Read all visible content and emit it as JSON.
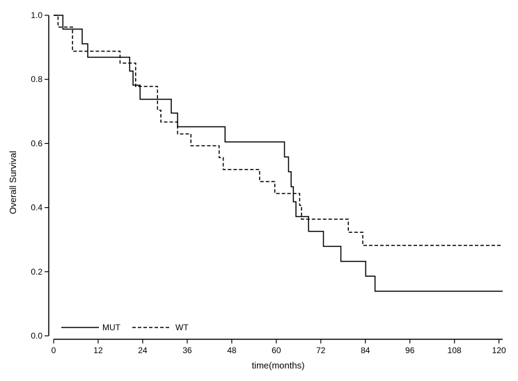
{
  "chart_data": {
    "type": "line",
    "xlabel": "time(months)",
    "ylabel": "Overall Survival",
    "xlim": [
      0,
      121
    ],
    "ylim": [
      0.0,
      1.0
    ],
    "xticks": [
      0,
      12,
      24,
      36,
      48,
      60,
      72,
      84,
      96,
      108,
      120
    ],
    "xtick_labels": [
      "0",
      "12",
      "24",
      "36",
      "48",
      "60",
      "72",
      "84",
      "96",
      "108",
      "120"
    ],
    "yticks": [
      0.0,
      0.2,
      0.4,
      0.6,
      0.8,
      1.0
    ],
    "ytick_labels": [
      "0.0",
      "0.2",
      "0.4",
      "0.6",
      "0.8",
      "1.0"
    ],
    "grid": false,
    "legend_placement": "bottom-left",
    "series": [
      {
        "name": "MUT",
        "style": "solid",
        "color": "#000000",
        "points": [
          [
            0,
            1.0
          ],
          [
            2.5,
            0.957
          ],
          [
            7.7,
            0.911
          ],
          [
            9.2,
            0.869
          ],
          [
            20.5,
            0.826
          ],
          [
            21.4,
            0.782
          ],
          [
            23.3,
            0.738
          ],
          [
            31.7,
            0.695
          ],
          [
            33.4,
            0.652
          ],
          [
            46.2,
            0.605
          ],
          [
            62.2,
            0.558
          ],
          [
            63.3,
            0.512
          ],
          [
            64.0,
            0.465
          ],
          [
            64.6,
            0.418
          ],
          [
            65.3,
            0.372
          ],
          [
            68.7,
            0.326
          ],
          [
            72.7,
            0.279
          ],
          [
            77.4,
            0.232
          ],
          [
            84.1,
            0.186
          ],
          [
            86.6,
            0.139
          ],
          [
            121,
            0.139
          ]
        ]
      },
      {
        "name": "WT",
        "style": "dashed",
        "color": "#000000",
        "points": [
          [
            0,
            1.0
          ],
          [
            1.2,
            0.963
          ],
          [
            5.1,
            0.888
          ],
          [
            17.9,
            0.851
          ],
          [
            22.1,
            0.778
          ],
          [
            28.0,
            0.704
          ],
          [
            28.9,
            0.667
          ],
          [
            33.4,
            0.63
          ],
          [
            37.0,
            0.593
          ],
          [
            44.6,
            0.556
          ],
          [
            45.7,
            0.519
          ],
          [
            55.5,
            0.481
          ],
          [
            59.6,
            0.444
          ],
          [
            66.3,
            0.407
          ],
          [
            66.8,
            0.364
          ],
          [
            79.4,
            0.323
          ],
          [
            83.3,
            0.282
          ],
          [
            121,
            0.282
          ]
        ]
      }
    ]
  }
}
